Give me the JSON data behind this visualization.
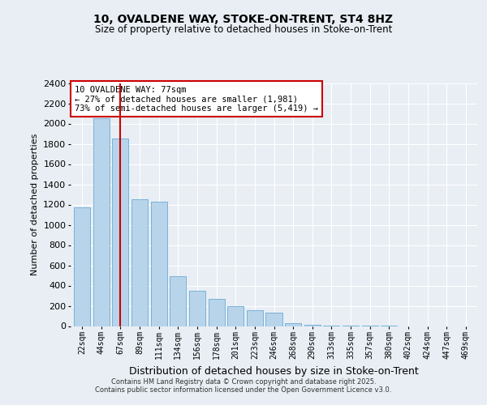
{
  "title_line1": "10, OVALDENE WAY, STOKE-ON-TRENT, ST4 8HZ",
  "title_line2": "Size of property relative to detached houses in Stoke-on-Trent",
  "xlabel": "Distribution of detached houses by size in Stoke-on-Trent",
  "ylabel": "Number of detached properties",
  "categories": [
    "22sqm",
    "44sqm",
    "67sqm",
    "89sqm",
    "111sqm",
    "134sqm",
    "156sqm",
    "178sqm",
    "201sqm",
    "223sqm",
    "246sqm",
    "268sqm",
    "290sqm",
    "313sqm",
    "335sqm",
    "357sqm",
    "380sqm",
    "402sqm",
    "424sqm",
    "447sqm",
    "469sqm"
  ],
  "values": [
    1175,
    2050,
    1850,
    1250,
    1230,
    490,
    350,
    270,
    200,
    160,
    130,
    30,
    10,
    5,
    3,
    2,
    1,
    0,
    0,
    0,
    0
  ],
  "bar_color": "#b8d4ea",
  "bar_edge_color": "#6aaad4",
  "ref_line_x": 2,
  "ref_line_color": "#cc0000",
  "annotation_text": "10 OVALDENE WAY: 77sqm\n← 27% of detached houses are smaller (1,981)\n73% of semi-detached houses are larger (5,419) →",
  "annotation_box_color": "white",
  "annotation_box_edge": "#cc0000",
  "ylim": [
    0,
    2400
  ],
  "yticks": [
    0,
    200,
    400,
    600,
    800,
    1000,
    1200,
    1400,
    1600,
    1800,
    2000,
    2200,
    2400
  ],
  "footer_line1": "Contains HM Land Registry data © Crown copyright and database right 2025.",
  "footer_line2": "Contains public sector information licensed under the Open Government Licence v3.0.",
  "background_color": "#e8eef4",
  "plot_bg_color": "#e8eef4",
  "grid_color": "#ffffff"
}
